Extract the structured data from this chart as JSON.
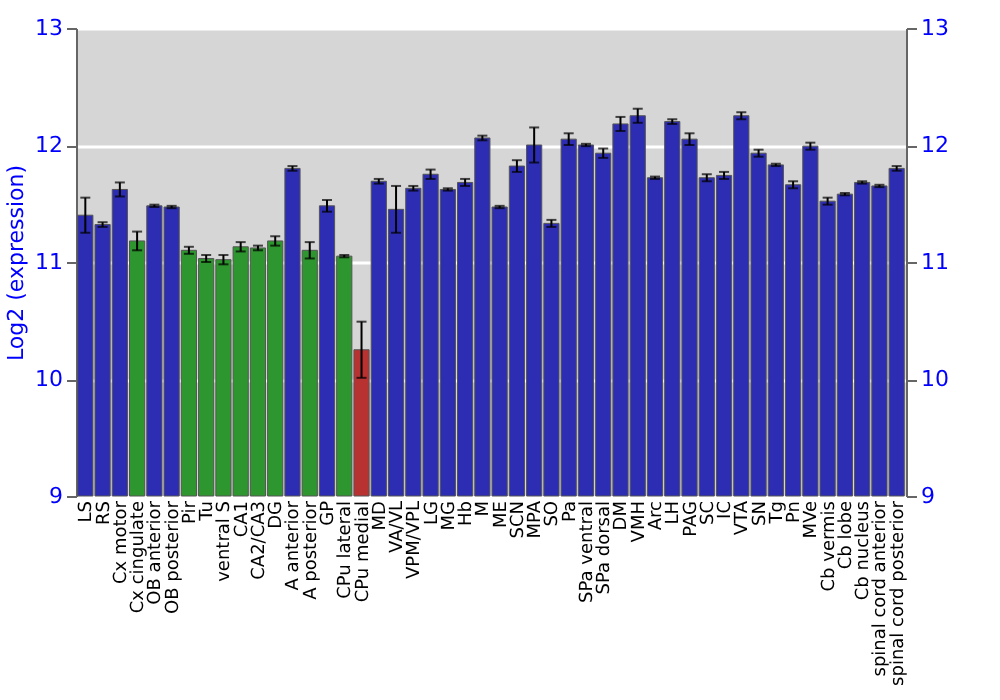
{
  "chart_data": {
    "type": "bar",
    "ylabel": "Log2 (expression)",
    "categories": [
      "LS",
      "RS",
      "Cx motor",
      "Cx cingulate",
      "OB anterior",
      "OB posterior",
      "Pir",
      "Tu",
      "ventral S",
      "CA1",
      "CA2/CA3",
      "DG",
      "A anterior",
      "A posterior",
      "GP",
      "CPu lateral",
      "CPu medial",
      "MD",
      "VA/VL",
      "VPM/VPL",
      "LG",
      "MG",
      "Hb",
      "M",
      "ME",
      "SCN",
      "MPA",
      "SO",
      "Pa",
      "SPa ventral",
      "SPa dorsal",
      "DM",
      "VMH",
      "Arc",
      "LH",
      "PAG",
      "SC",
      "IC",
      "VTA",
      "SN",
      "Tg",
      "Pn",
      "MVe",
      "Cb vermis",
      "Cb lobe",
      "Cb nucleus",
      "spinal cord anterior",
      "spinal cord posterior"
    ],
    "values": [
      11.4,
      11.32,
      11.62,
      11.18,
      11.48,
      11.47,
      11.1,
      11.03,
      11.02,
      11.13,
      11.12,
      11.18,
      11.8,
      11.1,
      11.48,
      11.05,
      10.25,
      11.69,
      11.45,
      11.63,
      11.75,
      11.62,
      11.68,
      12.06,
      11.47,
      11.82,
      12.0,
      11.33,
      12.05,
      12.0,
      11.93,
      12.18,
      12.25,
      11.72,
      12.2,
      12.05,
      11.72,
      11.74,
      12.25,
      11.93,
      11.83,
      11.66,
      11.99,
      11.52,
      11.58,
      11.68,
      11.65,
      11.8
    ],
    "errors": [
      0.15,
      0.02,
      0.06,
      0.08,
      0.01,
      0.01,
      0.03,
      0.03,
      0.04,
      0.04,
      0.02,
      0.04,
      0.02,
      0.07,
      0.05,
      0.01,
      0.24,
      0.02,
      0.2,
      0.02,
      0.04,
      0.01,
      0.03,
      0.02,
      0.01,
      0.05,
      0.15,
      0.03,
      0.05,
      0.01,
      0.04,
      0.06,
      0.06,
      0.01,
      0.02,
      0.05,
      0.03,
      0.03,
      0.03,
      0.03,
      0.01,
      0.03,
      0.03,
      0.03,
      0.01,
      0.01,
      0.01,
      0.02
    ],
    "colors": [
      "#2d2db4",
      "#2d2db4",
      "#2d2db4",
      "#2e962e",
      "#2d2db4",
      "#2d2db4",
      "#2e962e",
      "#2e962e",
      "#2e962e",
      "#2e962e",
      "#2e962e",
      "#2e962e",
      "#2d2db4",
      "#2e962e",
      "#2d2db4",
      "#2e962e",
      "#b83232",
      "#2d2db4",
      "#2d2db4",
      "#2d2db4",
      "#2d2db4",
      "#2d2db4",
      "#2d2db4",
      "#2d2db4",
      "#2d2db4",
      "#2d2db4",
      "#2d2db4",
      "#2d2db4",
      "#2d2db4",
      "#2d2db4",
      "#2d2db4",
      "#2d2db4",
      "#2d2db4",
      "#2d2db4",
      "#2d2db4",
      "#2d2db4",
      "#2d2db4",
      "#2d2db4",
      "#2d2db4",
      "#2d2db4",
      "#2d2db4",
      "#2d2db4",
      "#2d2db4",
      "#2d2db4",
      "#2d2db4",
      "#2d2db4",
      "#2d2db4",
      "#2d2db4"
    ],
    "ylim": [
      9,
      13
    ],
    "yticks": [
      9,
      10,
      11,
      12,
      13
    ],
    "y2lim": [
      9,
      13
    ],
    "y2ticks": [
      9,
      10,
      11,
      12,
      13
    ],
    "grid": "y",
    "legend": false
  }
}
